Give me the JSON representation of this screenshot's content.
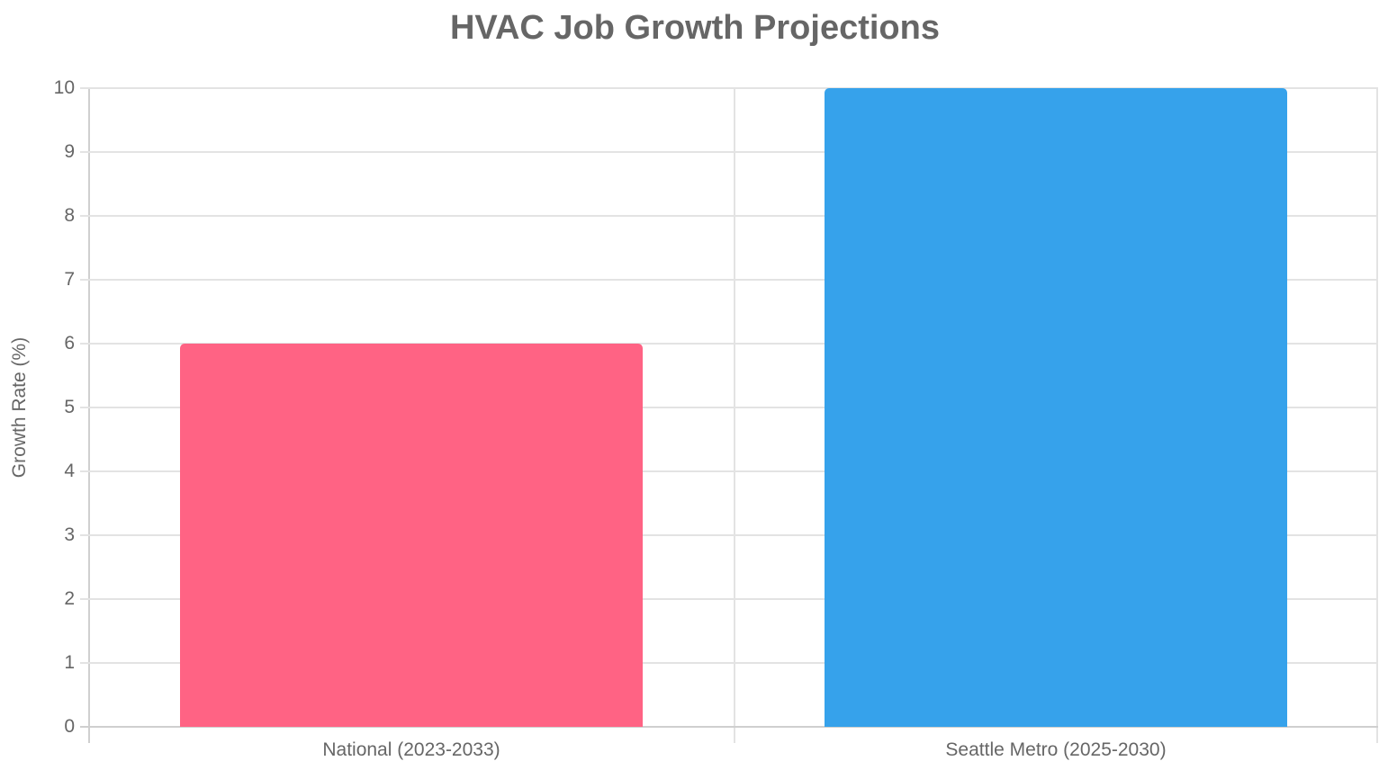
{
  "chart_data": {
    "type": "bar",
    "title": "HVAC Job Growth Projections",
    "xlabel": "",
    "ylabel": "Growth Rate (%)",
    "categories": [
      "National (2023-2033)",
      "Seattle Metro (2025-2030)"
    ],
    "values": [
      6,
      10
    ],
    "colors": [
      "#ff6384",
      "#36a2eb"
    ],
    "ylim": [
      0,
      10
    ],
    "yticks": [
      "0",
      "1",
      "2",
      "3",
      "4",
      "5",
      "6",
      "7",
      "8",
      "9",
      "10"
    ],
    "grid": true,
    "legend": "none"
  }
}
